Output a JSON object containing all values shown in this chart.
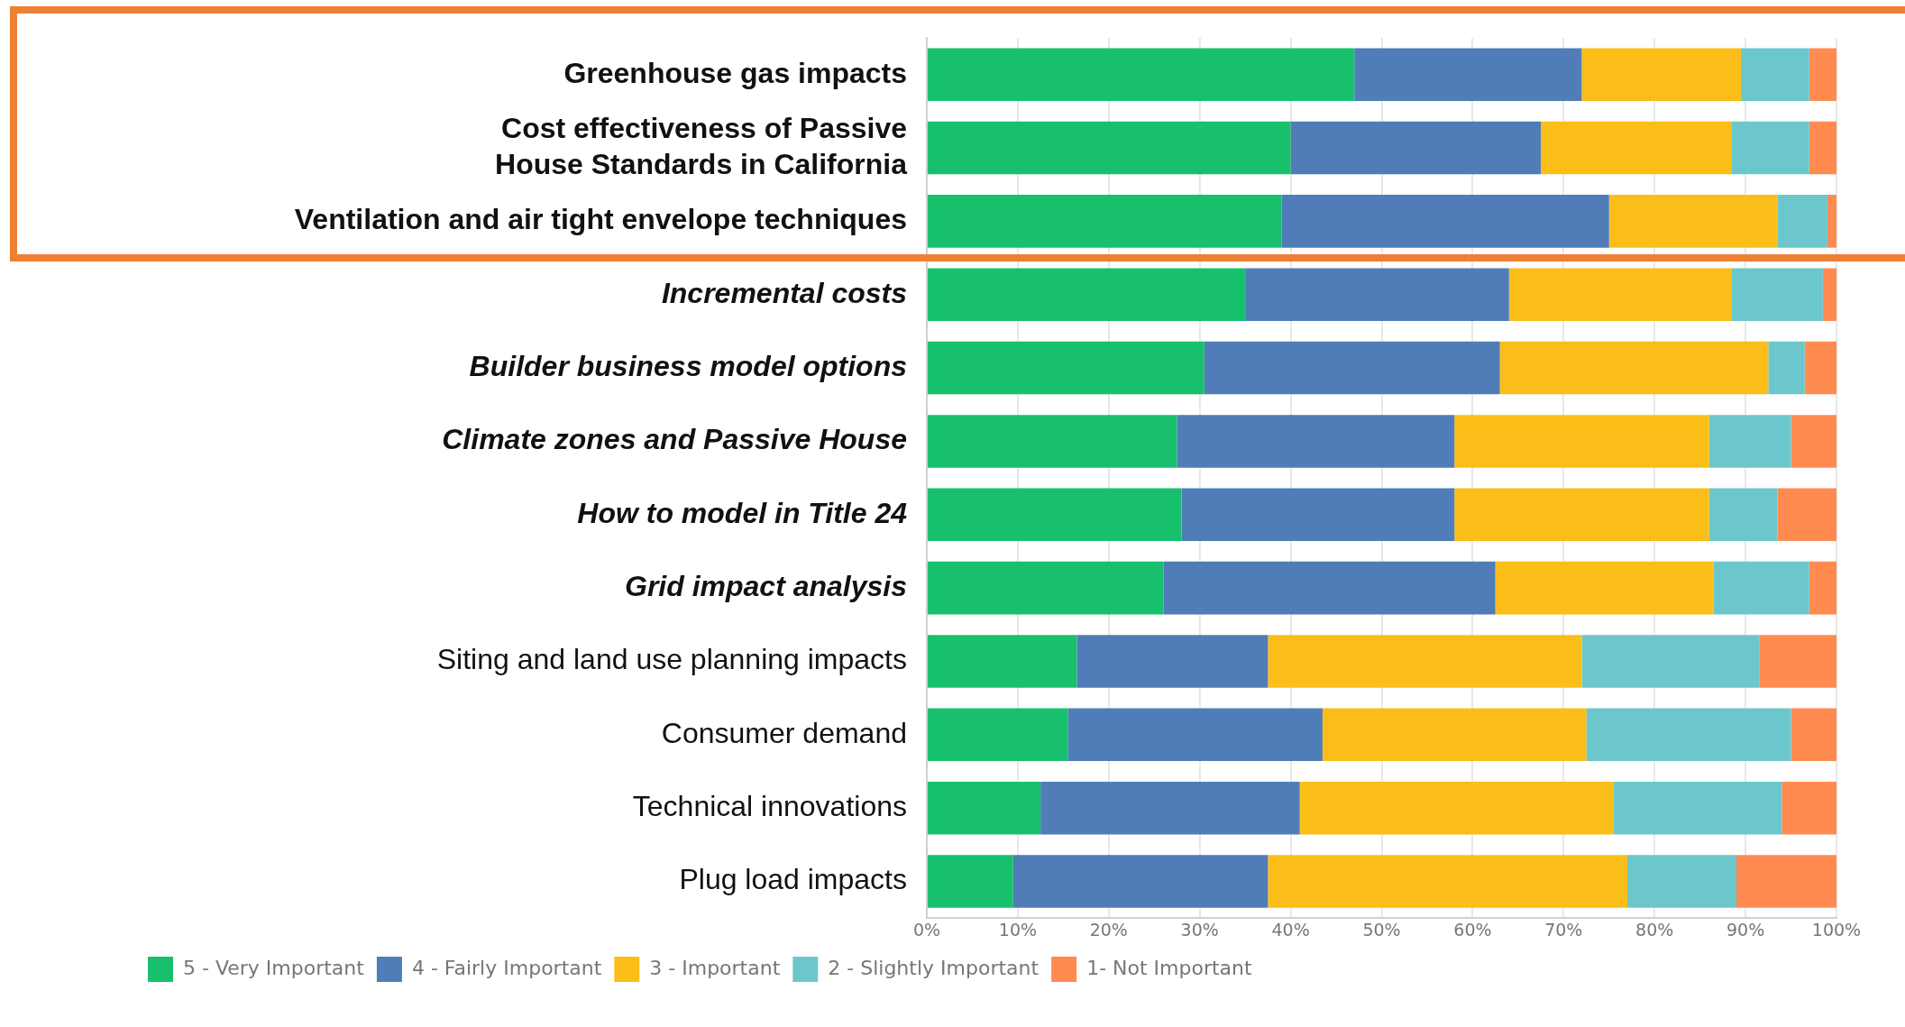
{
  "chart_data": {
    "type": "bar",
    "orientation": "horizontal",
    "stacked": true,
    "categories": [
      "Greenhouse gas impacts",
      "Cost effectiveness of Passive House Standards in California",
      "Ventilation and air tight envelope techniques",
      "Incremental costs",
      "Builder business model options",
      "Climate zones and Passive House",
      "How to model in Title 24",
      "Grid impact analysis",
      "Siting and land use planning impacts",
      "Consumer demand",
      "Technical innovations",
      "Plug load impacts"
    ],
    "series": [
      {
        "name": "5 - Very Important",
        "color": "#18c06e",
        "values": [
          47,
          40,
          39,
          35,
          30.5,
          27.5,
          28,
          26,
          16.5,
          15.5,
          12.5,
          9.5
        ]
      },
      {
        "name": "4 - Fairly Important",
        "color": "#507db7",
        "values": [
          25,
          27.5,
          36,
          29,
          32.5,
          30.5,
          30,
          36.5,
          21,
          28,
          28.5,
          28
        ]
      },
      {
        "name": "3 - Important",
        "color": "#fbbe18",
        "values": [
          17.5,
          21,
          18.5,
          24.5,
          29.5,
          28,
          28,
          24,
          34.5,
          29,
          34.5,
          39.5
        ]
      },
      {
        "name": "2 - Slightly Important",
        "color": "#6cc7cc",
        "values": [
          7.5,
          8.5,
          5.5,
          10,
          4,
          9,
          7.5,
          10.5,
          19.5,
          22.5,
          18.5,
          12
        ]
      },
      {
        "name": "1- Not Important",
        "color": "#ff8b50",
        "values": [
          3,
          3,
          1,
          1.5,
          3.5,
          5,
          6.5,
          3,
          8.5,
          5,
          6,
          11
        ]
      }
    ],
    "xlim": [
      0,
      100
    ],
    "xticks": [
      {
        "value": 0,
        "label": "0%"
      },
      {
        "value": 10,
        "label": "10%"
      },
      {
        "value": 20,
        "label": "20%"
      },
      {
        "value": 30,
        "label": "30%"
      },
      {
        "value": 40,
        "label": "40%"
      },
      {
        "value": 50,
        "label": "50%"
      },
      {
        "value": 60,
        "label": "60%"
      },
      {
        "value": 70,
        "label": "70%"
      },
      {
        "value": 80,
        "label": "80%"
      },
      {
        "value": 90,
        "label": "90%"
      },
      {
        "value": 100,
        "label": "100%"
      }
    ],
    "grid": "x",
    "legend": "bottom left"
  }
}
